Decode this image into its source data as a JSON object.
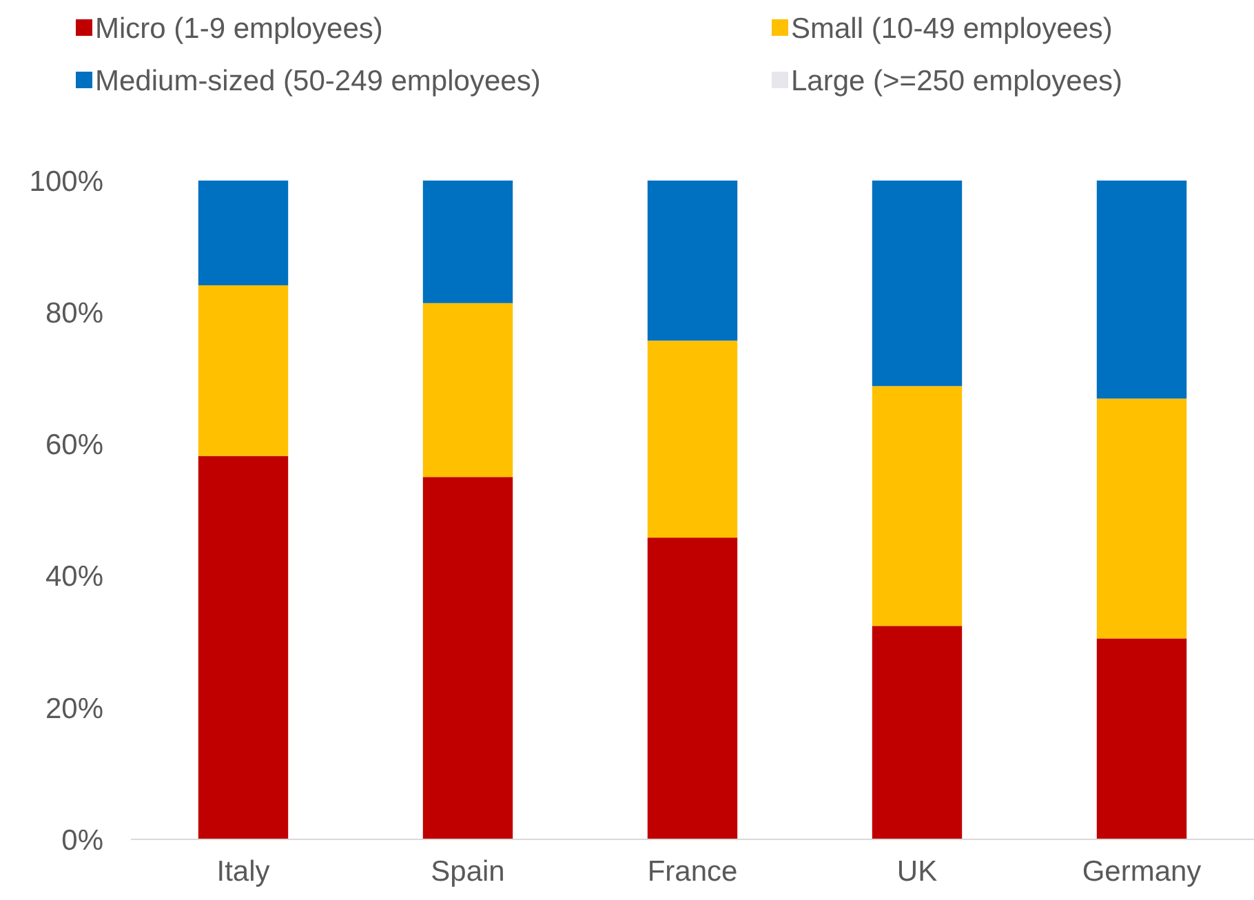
{
  "chart_data": {
    "type": "bar",
    "stacked": true,
    "categories": [
      "Italy",
      "Spain",
      "France",
      "UK",
      "Germany"
    ],
    "series": [
      {
        "name": "Micro (1-9 employees)",
        "color": "#c00000",
        "values": [
          58.2,
          55.0,
          45.8,
          32.4,
          30.5
        ]
      },
      {
        "name": "Small (10-49 employees)",
        "color": "#ffc000",
        "values": [
          25.9,
          26.4,
          29.9,
          36.4,
          36.4
        ]
      },
      {
        "name": "Medium-sized (50-249 employees)",
        "color": "#0070c0",
        "values": [
          15.9,
          18.6,
          24.3,
          31.2,
          33.1
        ]
      },
      {
        "name": "Large (>=250 employees)",
        "color": "#e7e6ec",
        "values": [
          0,
          0,
          0,
          0,
          0
        ]
      }
    ],
    "ylim": [
      0,
      100
    ],
    "yticks": [
      {
        "value": 0,
        "label": "0%"
      },
      {
        "value": 20,
        "label": "20%"
      },
      {
        "value": 40,
        "label": "40%"
      },
      {
        "value": 60,
        "label": "60%"
      },
      {
        "value": 80,
        "label": "80%"
      },
      {
        "value": 100,
        "label": "100%"
      }
    ],
    "grid": false,
    "legend": "top"
  }
}
